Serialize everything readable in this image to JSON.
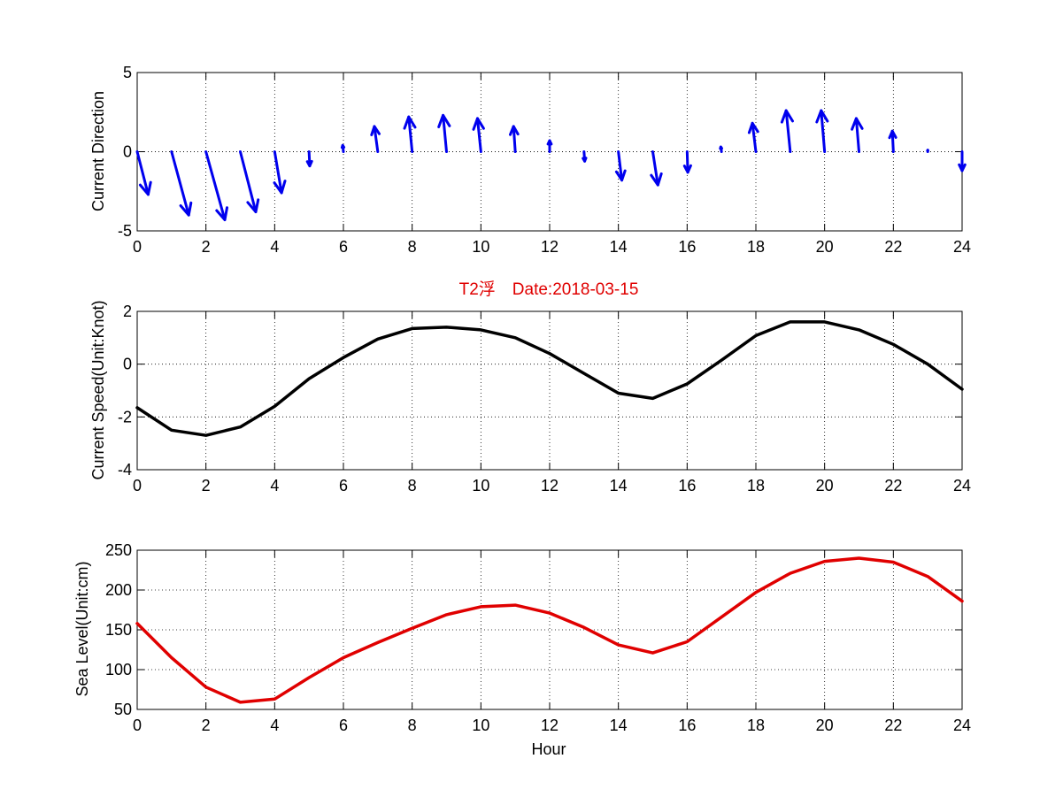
{
  "figure": {
    "title": "T2浮　Date:2018-03-15",
    "title_color": "#e00000"
  },
  "chart_data": [
    {
      "type": "quiver",
      "ylabel": "Current Direction",
      "xlabel": "",
      "xlim": [
        0,
        24
      ],
      "ylim": [
        -5,
        5
      ],
      "x_ticks": [
        0,
        2,
        4,
        6,
        8,
        10,
        12,
        14,
        16,
        18,
        20,
        22,
        24
      ],
      "y_ticks": [
        -5,
        0,
        5
      ],
      "grid": true,
      "color": "#0000ee",
      "vectors": [
        {
          "x": 0,
          "u": 0.32,
          "v": -2.7
        },
        {
          "x": 1,
          "u": 0.5,
          "v": -4.0
        },
        {
          "x": 2,
          "u": 0.55,
          "v": -4.3
        },
        {
          "x": 3,
          "u": 0.45,
          "v": -3.8
        },
        {
          "x": 4,
          "u": 0.2,
          "v": -2.6
        },
        {
          "x": 5,
          "u": 0.02,
          "v": -0.9
        },
        {
          "x": 6,
          "u": -0.02,
          "v": 0.4
        },
        {
          "x": 7,
          "u": -0.1,
          "v": 1.6
        },
        {
          "x": 8,
          "u": -0.1,
          "v": 2.2
        },
        {
          "x": 9,
          "u": -0.1,
          "v": 2.3
        },
        {
          "x": 10,
          "u": -0.1,
          "v": 2.1
        },
        {
          "x": 11,
          "u": -0.05,
          "v": 1.6
        },
        {
          "x": 12,
          "u": 0.0,
          "v": 0.7
        },
        {
          "x": 13,
          "u": 0.02,
          "v": -0.6
        },
        {
          "x": 14,
          "u": 0.1,
          "v": -1.8
        },
        {
          "x": 15,
          "u": 0.15,
          "v": -2.1
        },
        {
          "x": 16,
          "u": 0.02,
          "v": -1.3
        },
        {
          "x": 17,
          "u": -0.02,
          "v": 0.3
        },
        {
          "x": 18,
          "u": -0.1,
          "v": 1.8
        },
        {
          "x": 19,
          "u": -0.12,
          "v": 2.6
        },
        {
          "x": 20,
          "u": -0.1,
          "v": 2.6
        },
        {
          "x": 21,
          "u": -0.08,
          "v": 2.1
        },
        {
          "x": 22,
          "u": -0.03,
          "v": 1.3
        },
        {
          "x": 23,
          "u": 0.0,
          "v": 0.1
        },
        {
          "x": 24,
          "u": 0.0,
          "v": -1.2
        }
      ]
    },
    {
      "type": "line",
      "ylabel": "Current Speed(Unit:Knot)",
      "xlabel": "",
      "xlim": [
        0,
        24
      ],
      "ylim": [
        -4,
        2
      ],
      "x_ticks": [
        0,
        2,
        4,
        6,
        8,
        10,
        12,
        14,
        16,
        18,
        20,
        22,
        24
      ],
      "y_ticks": [
        -4,
        -2,
        0,
        2
      ],
      "grid": true,
      "color": "#000000",
      "x": [
        0,
        1,
        2,
        3,
        4,
        5,
        6,
        7,
        8,
        9,
        10,
        11,
        12,
        13,
        14,
        15,
        16,
        17,
        18,
        19,
        20,
        21,
        22,
        23,
        24
      ],
      "values": [
        -1.65,
        -2.5,
        -2.7,
        -2.38,
        -1.6,
        -0.55,
        0.25,
        0.95,
        1.35,
        1.4,
        1.3,
        1.0,
        0.4,
        -0.35,
        -1.1,
        -1.3,
        -0.75,
        0.15,
        1.08,
        1.6,
        1.6,
        1.3,
        0.75,
        0.0,
        -0.95
      ]
    },
    {
      "type": "line",
      "ylabel": "Sea Level(Unit:cm)",
      "xlabel": "Hour",
      "xlim": [
        0,
        24
      ],
      "ylim": [
        50,
        250
      ],
      "x_ticks": [
        0,
        2,
        4,
        6,
        8,
        10,
        12,
        14,
        16,
        18,
        20,
        22,
        24
      ],
      "y_ticks": [
        50,
        100,
        150,
        200,
        250
      ],
      "grid": true,
      "color": "#e00000",
      "x": [
        0,
        1,
        2,
        3,
        4,
        5,
        6,
        7,
        8,
        9,
        10,
        11,
        12,
        13,
        14,
        15,
        16,
        17,
        18,
        19,
        20,
        21,
        22,
        23,
        24
      ],
      "values": [
        158,
        115,
        78,
        59,
        63,
        90,
        115,
        134,
        152,
        169,
        179,
        181,
        171,
        153,
        131,
        121,
        135,
        166,
        197,
        221,
        236,
        240,
        235,
        217,
        186
      ]
    }
  ]
}
